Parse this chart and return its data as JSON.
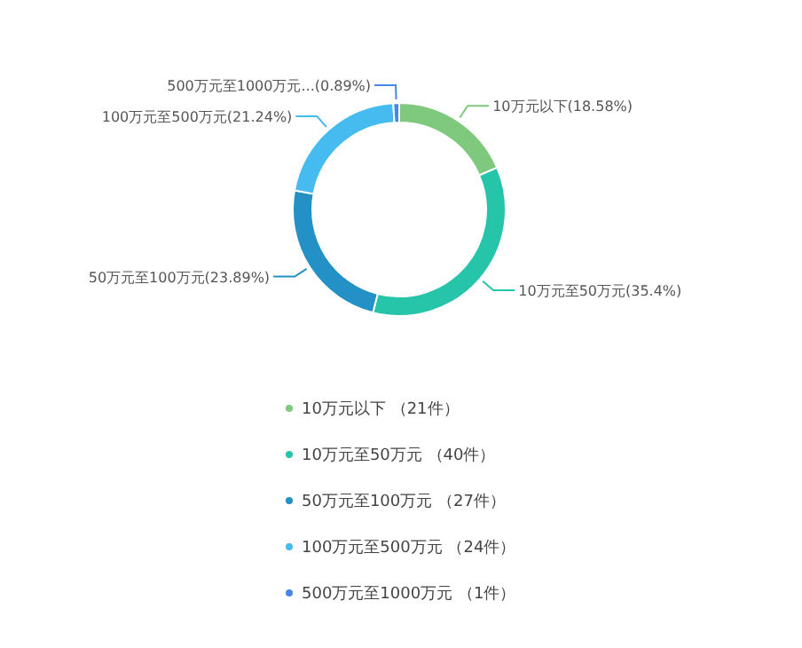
{
  "chart_data": {
    "type": "donut",
    "categories": [
      "10万元以下 （21件）",
      "10万元至50万元 （40件）",
      "50万元至100万元 （27件）",
      "100万元至500万元 （24件）",
      "500万元至1000万元 （1件）"
    ],
    "values": [
      18.58,
      35.4,
      23.89,
      21.24,
      0.89
    ],
    "value_labels": [
      "10万元以下(18.58%)",
      "10万元至50万元(35.4%)",
      "50万元至100万元(23.89%)",
      "100万元至500万元(21.24%)",
      "500万元至1000万元...(0.89%)"
    ],
    "colors": [
      "#7fc97f",
      "#26c4a8",
      "#2390c6",
      "#45bbef",
      "#4a86e8"
    ],
    "legend": "bottom"
  }
}
